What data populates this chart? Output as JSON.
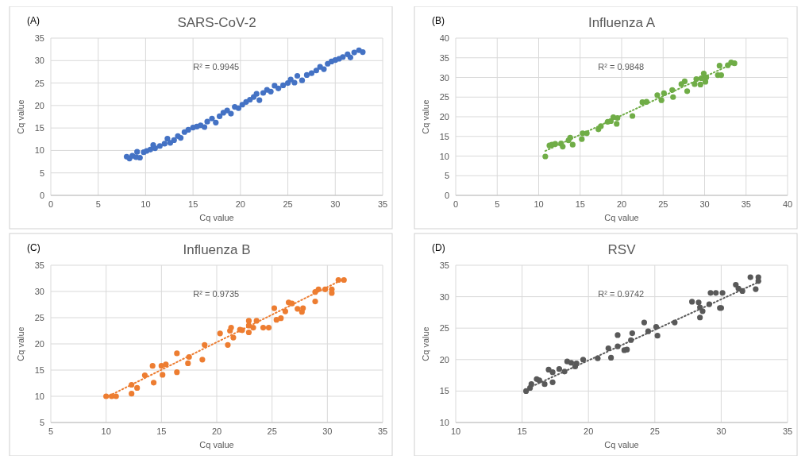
{
  "chart_data": [
    {
      "type": "scatter",
      "title": "SARS-CoV-2",
      "xlabel": "Cq value",
      "ylabel": "Cq value",
      "annotations": [
        "(A)",
        "R² = 0.9945"
      ],
      "xlim": [
        0,
        35
      ],
      "xticks": [
        0,
        5,
        10,
        15,
        20,
        25,
        30,
        35
      ],
      "ylim": [
        0,
        35
      ],
      "yticks": [
        0,
        5,
        10,
        15,
        20,
        25,
        30,
        35
      ],
      "grid": true,
      "marker": "circle",
      "series": [
        {
          "color": "#4472c4",
          "x": [
            8,
            8.3,
            8.6,
            9,
            9.1,
            9.4,
            9.8,
            10.1,
            10.5,
            10.8,
            11,
            11.5,
            12,
            12.3,
            12.6,
            13,
            13.4,
            13.7,
            14.1,
            14.5,
            15,
            15.4,
            15.8,
            16.2,
            16.5,
            17,
            17.4,
            17.8,
            18.2,
            18.6,
            19,
            19.4,
            19.8,
            20.2,
            20.6,
            21,
            21.4,
            21.7,
            22,
            22.4,
            22.8,
            23.2,
            23.6,
            24,
            24.5,
            25,
            25.3,
            25.7,
            26,
            26.5,
            27,
            27.5,
            28,
            28.4,
            28.8,
            29.2,
            29.6,
            30,
            30.4,
            30.8,
            31.3,
            31.6,
            32,
            32.5,
            32.9
          ],
          "values": [
            8.6,
            8.2,
            8.8,
            8.5,
            9.7,
            8.4,
            9.6,
            9.9,
            10.2,
            11.2,
            10.5,
            11,
            11.5,
            12.6,
            11.7,
            12.3,
            13.2,
            12.8,
            14.1,
            14.6,
            15.1,
            15.3,
            15.6,
            15.2,
            16.4,
            17.1,
            16.2,
            17.6,
            18.4,
            18.9,
            18.2,
            19.7,
            19.4,
            20.2,
            20.8,
            21.3,
            21.9,
            22.6,
            21.2,
            22.8,
            23.5,
            23.1,
            24.4,
            23.8,
            24.5,
            25,
            25.8,
            25.1,
            26.6,
            25.6,
            26.8,
            27.2,
            27.8,
            28.6,
            28.1,
            29.3,
            29.8,
            30.1,
            30.4,
            30.8,
            31.4,
            30.7,
            31.8,
            32.3,
            31.9
          ]
        }
      ]
    },
    {
      "type": "scatter",
      "title": "Influenza A",
      "xlabel": "Cq value",
      "ylabel": "Cq value",
      "annotations": [
        "(B)",
        "R² = 0.9848"
      ],
      "xlim": [
        0,
        40
      ],
      "xticks": [
        0,
        5,
        10,
        15,
        20,
        25,
        30,
        35,
        40
      ],
      "ylim": [
        0,
        40
      ],
      "yticks": [
        0,
        5,
        10,
        15,
        20,
        25,
        30,
        35,
        40
      ],
      "grid": true,
      "marker": "circle",
      "series": [
        {
          "color": "#70ad47",
          "x": [
            10.8,
            11.3,
            11.6,
            12,
            12.7,
            12.9,
            13.6,
            13.8,
            14.1,
            15.2,
            15.3,
            15.8,
            17.2,
            17.5,
            18.3,
            18.7,
            19,
            19.4,
            19.5,
            21.3,
            22.5,
            23,
            24.3,
            24.8,
            25.1,
            26.1,
            26.2,
            27.2,
            27.6,
            27.9,
            28.8,
            29,
            29.5,
            29.6,
            29.9,
            30.1,
            30.2,
            31.6,
            31.8,
            32,
            32.8,
            33.2,
            33.6
          ],
          "values": [
            9.9,
            12.7,
            12.9,
            13.1,
            13.2,
            12.4,
            14,
            14.7,
            12.9,
            14.3,
            15.8,
            15.8,
            16.8,
            17.6,
            18.7,
            18.9,
            19.9,
            18.2,
            19.7,
            20.2,
            23.7,
            23.8,
            25.5,
            24.2,
            26,
            26.8,
            25,
            28.3,
            29,
            26.5,
            28.3,
            29.6,
            28.2,
            29.8,
            31,
            28.9,
            30,
            30.6,
            33,
            30.6,
            33.1,
            33.8,
            33.6
          ]
        },
        {
          "type": "line",
          "color": "#70ad47",
          "line_style": "dotted",
          "marker": "none",
          "x": [
            10.8,
            33.6
          ],
          "values": [
            11.3,
            33.7
          ]
        }
      ]
    },
    {
      "type": "scatter",
      "title": "Influenza B",
      "xlabel": "Cq value",
      "ylabel": "Cq value",
      "annotations": [
        "(C)",
        "R² = 0.9735"
      ],
      "xlim": [
        5,
        35
      ],
      "xticks": [
        5,
        10,
        15,
        20,
        25,
        30,
        35
      ],
      "ylim": [
        5,
        35
      ],
      "yticks": [
        5,
        10,
        15,
        20,
        25,
        30,
        35
      ],
      "grid": true,
      "marker": "circle",
      "series": [
        {
          "color": "#ed7d31",
          "x": [
            10,
            10.5,
            10.9,
            12.3,
            12.3,
            12.8,
            13.5,
            14.2,
            14.3,
            15,
            15.1,
            15.4,
            16.4,
            16.4,
            17.5,
            17.4,
            18.7,
            18.9,
            20.3,
            21,
            21.2,
            21.3,
            21.5,
            22.1,
            22.3,
            22.9,
            22.9,
            22.9,
            23.3,
            23.6,
            24.2,
            24.7,
            25.2,
            25.4,
            25.8,
            26.2,
            26.5,
            26.8,
            27.3,
            27.8,
            27.7,
            28.9,
            28.9,
            29.2,
            29.8,
            30.4,
            30.4,
            31,
            31.5
          ],
          "values": [
            10,
            10,
            10,
            10.5,
            12.2,
            11.6,
            14,
            15.8,
            12.6,
            15.8,
            14.1,
            16.1,
            18.2,
            14.6,
            17.5,
            16.3,
            17,
            19.8,
            22,
            19.8,
            22.5,
            23.1,
            21.2,
            22.7,
            22.6,
            22.2,
            24.4,
            23.5,
            23.1,
            24.4,
            23.1,
            23.1,
            26.8,
            24.6,
            24.9,
            26.2,
            27.9,
            27.7,
            26.7,
            26.8,
            26.1,
            28.1,
            29.9,
            30.4,
            30.4,
            30.4,
            29.7,
            32.2,
            32.2
          ]
        },
        {
          "type": "line",
          "color": "#ed7d31",
          "line_style": "dotted",
          "marker": "none",
          "x": [
            10,
            31.5
          ],
          "values": [
            9.8,
            32.4
          ]
        }
      ]
    },
    {
      "type": "scatter",
      "title": "RSV",
      "xlabel": "Cq value",
      "ylabel": "Cq value",
      "annotations": [
        "(D)",
        "R² = 0.9742"
      ],
      "xlim": [
        10,
        35
      ],
      "xticks": [
        10,
        15,
        20,
        25,
        30,
        35
      ],
      "ylim": [
        10,
        35
      ],
      "yticks": [
        10,
        15,
        20,
        25,
        30,
        35
      ],
      "grid": true,
      "marker": "circle",
      "series": [
        {
          "color": "#595959",
          "x": [
            15.3,
            15.6,
            15.7,
            16.1,
            16.3,
            16.7,
            17,
            17.3,
            17.3,
            17.8,
            18.2,
            18.4,
            18.7,
            19,
            19.1,
            19.6,
            20.7,
            21.5,
            21.7,
            22.2,
            22.2,
            22.7,
            22.9,
            23.2,
            23.3,
            24.2,
            24.5,
            25.1,
            25.2,
            26.5,
            27.8,
            28.3,
            28.4,
            28.6,
            28.4,
            29.1,
            29.2,
            29.6,
            29.9,
            30,
            30.1,
            31.1,
            31.3,
            31.6,
            32.2,
            32.6,
            32.8,
            32.8
          ],
          "values": [
            15,
            15.5,
            16.1,
            16.9,
            16.7,
            16.1,
            18.4,
            18,
            16.4,
            18.5,
            18.1,
            19.7,
            19.5,
            18.9,
            19.4,
            20,
            20.2,
            21.8,
            20.3,
            22.1,
            23.9,
            21.5,
            21.6,
            23.1,
            24.2,
            25.9,
            24.5,
            25.2,
            23.8,
            25.9,
            29.2,
            29.1,
            28.3,
            27.7,
            26.7,
            28.8,
            30.6,
            30.6,
            28.2,
            28.2,
            30.6,
            31.9,
            31.3,
            30.9,
            33.1,
            31.2,
            33.1,
            32.5
          ]
        },
        {
          "type": "line",
          "color": "#595959",
          "line_style": "dotted",
          "marker": "none",
          "x": [
            15.5,
            33
          ],
          "values": [
            15.5,
            32.5
          ]
        }
      ]
    }
  ]
}
